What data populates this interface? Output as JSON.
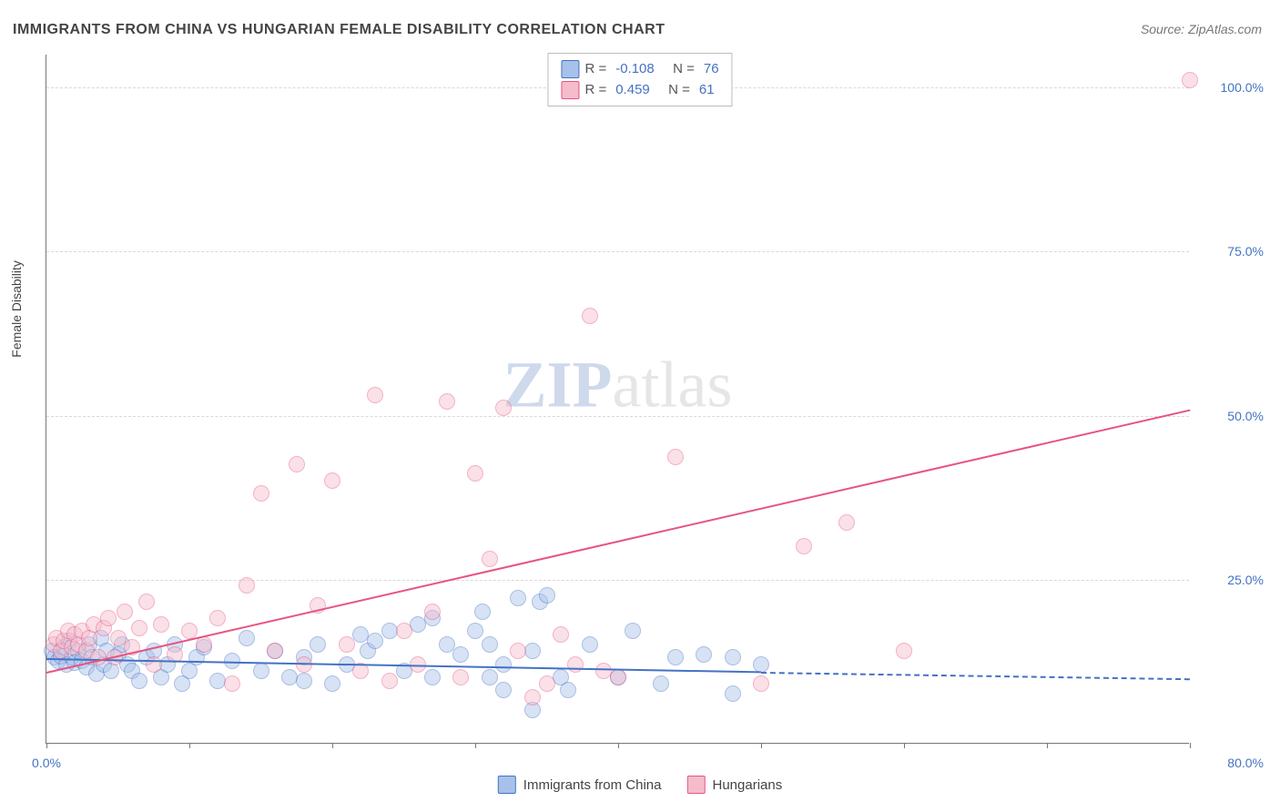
{
  "title": "IMMIGRANTS FROM CHINA VS HUNGARIAN FEMALE DISABILITY CORRELATION CHART",
  "source": "Source: ZipAtlas.com",
  "ylabel": "Female Disability",
  "watermark_a": "ZIP",
  "watermark_b": "atlas",
  "chart": {
    "type": "scatter",
    "background_color": "#ffffff",
    "grid_color": "#d9d9d9",
    "axis_color": "#777777",
    "text_color": "#444444",
    "value_color": "#4472c4",
    "xlim": [
      0,
      80
    ],
    "ylim": [
      0,
      105
    ],
    "xticks": [
      0,
      10,
      20,
      30,
      40,
      50,
      60,
      70,
      80
    ],
    "yticks": [
      25,
      50,
      75,
      100
    ],
    "yticklabels": [
      "25.0%",
      "50.0%",
      "75.0%",
      "100.0%"
    ],
    "x0_label": "0.0%",
    "x1_label": "80.0%",
    "marker_radius": 8,
    "marker_opacity": 0.45,
    "marker_border": 1.2,
    "label_fontsize": 14,
    "title_fontsize": 16,
    "series": [
      {
        "name": "Immigrants from China",
        "fill": "#a7c1ea",
        "stroke": "#4472c4",
        "R": "-0.108",
        "N": "76",
        "trend": {
          "x0": 0,
          "y0": 13,
          "x1": 50,
          "y1": 11,
          "ext_x": 80,
          "ext_y": 10
        },
        "points": [
          [
            0.4,
            14
          ],
          [
            0.6,
            13
          ],
          [
            0.8,
            12.5
          ],
          [
            1.0,
            13.2
          ],
          [
            1.2,
            14.5
          ],
          [
            1.4,
            12
          ],
          [
            1.6,
            15.5
          ],
          [
            1.8,
            13
          ],
          [
            2.0,
            12.2
          ],
          [
            2.2,
            14
          ],
          [
            2.5,
            12.5
          ],
          [
            2.8,
            11.5
          ],
          [
            3.0,
            15
          ],
          [
            3.2,
            13
          ],
          [
            3.5,
            10.5
          ],
          [
            3.8,
            16
          ],
          [
            4.0,
            12
          ],
          [
            4.2,
            14
          ],
          [
            4.5,
            11
          ],
          [
            5.0,
            13.5
          ],
          [
            5.3,
            15
          ],
          [
            5.7,
            12
          ],
          [
            6.0,
            11
          ],
          [
            6.5,
            9.5
          ],
          [
            7.0,
            13
          ],
          [
            7.5,
            14
          ],
          [
            8.0,
            10
          ],
          [
            8.5,
            12
          ],
          [
            9.0,
            15
          ],
          [
            10,
            11
          ],
          [
            10.5,
            13
          ],
          [
            11,
            14.5
          ],
          [
            12,
            9.5
          ],
          [
            13,
            12.5
          ],
          [
            14,
            16
          ],
          [
            15,
            11
          ],
          [
            16,
            14
          ],
          [
            17,
            10
          ],
          [
            18,
            13
          ],
          [
            19,
            15
          ],
          [
            20,
            9
          ],
          [
            21,
            12
          ],
          [
            22,
            16.5
          ],
          [
            22.5,
            14
          ],
          [
            23,
            15.5
          ],
          [
            24,
            17
          ],
          [
            25,
            11
          ],
          [
            26,
            18
          ],
          [
            27,
            10
          ],
          [
            28,
            15
          ],
          [
            29,
            13.5
          ],
          [
            30,
            17
          ],
          [
            30.5,
            20
          ],
          [
            31,
            15
          ],
          [
            32,
            12
          ],
          [
            33,
            22
          ],
          [
            34,
            14
          ],
          [
            34.5,
            21.5
          ],
          [
            35,
            22.5
          ],
          [
            36,
            10
          ],
          [
            36.5,
            8
          ],
          [
            38,
            15
          ],
          [
            40,
            10
          ],
          [
            41,
            17
          ],
          [
            43,
            9
          ],
          [
            44,
            13
          ],
          [
            46,
            13.5
          ],
          [
            48,
            13
          ],
          [
            50,
            12
          ],
          [
            48,
            7.5
          ],
          [
            32,
            8
          ],
          [
            27,
            19
          ],
          [
            34,
            5
          ],
          [
            31,
            10
          ],
          [
            9.5,
            9
          ],
          [
            18,
            9.5
          ]
        ]
      },
      {
        "name": "Hungarians",
        "fill": "#f5bccb",
        "stroke": "#e75480",
        "R": "0.459",
        "N": "61",
        "trend": {
          "x0": 0,
          "y0": 11,
          "x1": 80,
          "y1": 51,
          "ext_x": 80,
          "ext_y": 51
        },
        "points": [
          [
            0.5,
            15
          ],
          [
            0.7,
            16
          ],
          [
            1.0,
            14
          ],
          [
            1.2,
            15.5
          ],
          [
            1.5,
            17
          ],
          [
            1.8,
            14.5
          ],
          [
            2.0,
            16.5
          ],
          [
            2.2,
            15
          ],
          [
            2.5,
            17
          ],
          [
            2.8,
            14
          ],
          [
            3.0,
            16
          ],
          [
            3.3,
            18
          ],
          [
            3.6,
            13
          ],
          [
            4.0,
            17.5
          ],
          [
            4.3,
            19
          ],
          [
            4.8,
            13
          ],
          [
            5.0,
            16
          ],
          [
            5.5,
            20
          ],
          [
            6.0,
            14.5
          ],
          [
            6.5,
            17.5
          ],
          [
            7.0,
            21.5
          ],
          [
            7.5,
            12
          ],
          [
            8.0,
            18
          ],
          [
            9.0,
            13.5
          ],
          [
            10,
            17
          ],
          [
            11,
            15
          ],
          [
            12,
            19
          ],
          [
            13,
            9
          ],
          [
            14,
            24
          ],
          [
            15,
            38
          ],
          [
            16,
            14
          ],
          [
            17.5,
            42.5
          ],
          [
            18,
            12
          ],
          [
            19,
            21
          ],
          [
            20,
            40
          ],
          [
            21,
            15
          ],
          [
            22,
            11
          ],
          [
            23,
            53
          ],
          [
            24,
            9.5
          ],
          [
            25,
            17
          ],
          [
            26,
            12
          ],
          [
            27,
            20
          ],
          [
            28,
            52
          ],
          [
            29,
            10
          ],
          [
            30,
            41
          ],
          [
            31,
            28
          ],
          [
            32,
            51
          ],
          [
            33,
            14
          ],
          [
            34,
            7
          ],
          [
            35,
            9
          ],
          [
            36,
            16.5
          ],
          [
            37,
            12
          ],
          [
            38,
            65
          ],
          [
            39,
            11
          ],
          [
            40,
            10
          ],
          [
            44,
            43.5
          ],
          [
            50,
            9
          ],
          [
            53,
            30
          ],
          [
            56,
            33.5
          ],
          [
            60,
            14
          ],
          [
            80,
            101
          ]
        ]
      }
    ],
    "legend_bottom": [
      {
        "label": "Immigrants from China",
        "fill": "#a7c1ea",
        "stroke": "#4472c4"
      },
      {
        "label": "Hungarians",
        "fill": "#f5bccb",
        "stroke": "#e75480"
      }
    ]
  }
}
